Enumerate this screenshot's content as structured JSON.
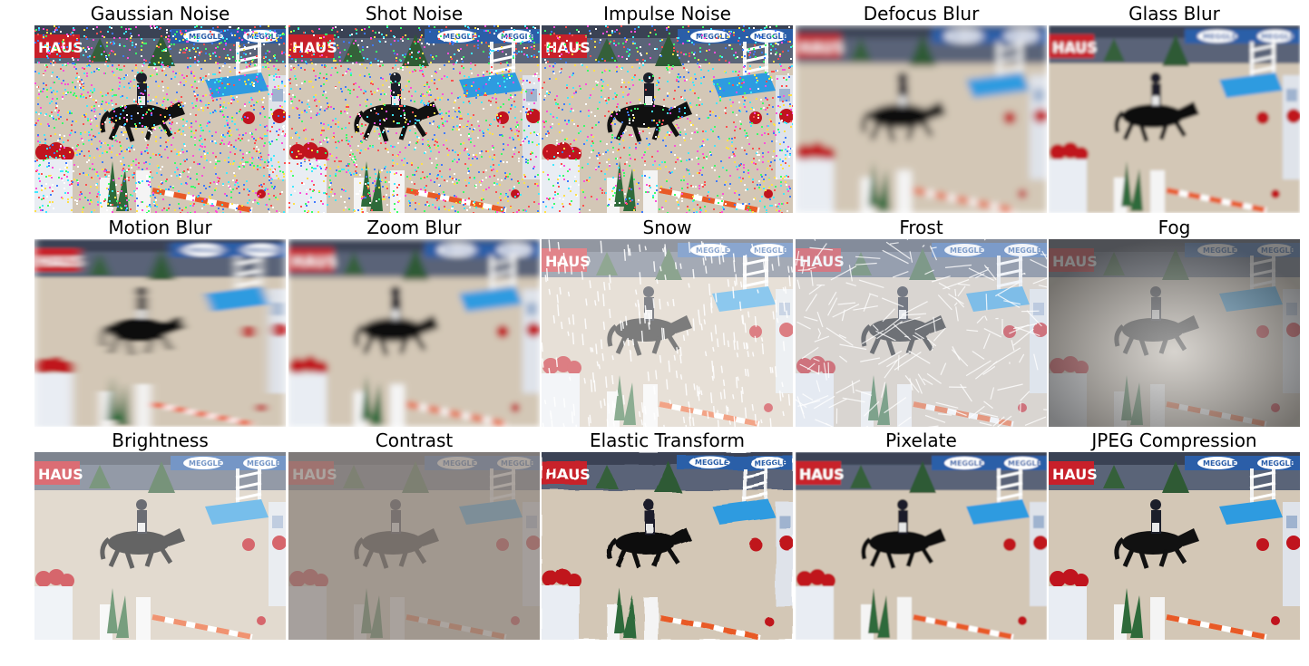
{
  "figure": {
    "panels": [
      {
        "title": "Gaussian Noise",
        "effect": "gaussian_noise"
      },
      {
        "title": "Shot Noise",
        "effect": "shot_noise"
      },
      {
        "title": "Impulse Noise",
        "effect": "impulse_noise"
      },
      {
        "title": "Defocus Blur",
        "effect": "defocus_blur"
      },
      {
        "title": "Glass Blur",
        "effect": "glass_blur"
      },
      {
        "title": "Motion Blur",
        "effect": "motion_blur"
      },
      {
        "title": "Zoom Blur",
        "effect": "zoom_blur"
      },
      {
        "title": "Snow",
        "effect": "snow"
      },
      {
        "title": "Frost",
        "effect": "frost"
      },
      {
        "title": "Fog",
        "effect": "fog"
      },
      {
        "title": "Brightness",
        "effect": "brightness"
      },
      {
        "title": "Contrast",
        "effect": "contrast"
      },
      {
        "title": "Elastic Transform",
        "effect": "elastic_transform"
      },
      {
        "title": "Pixelate",
        "effect": "pixelate"
      },
      {
        "title": "JPEG Compression",
        "effect": "jpeg_compression"
      }
    ]
  },
  "scene": {
    "subject": "horse and rider in a show-jumping arena",
    "banner_left": "HAUS",
    "banner_right": "MEGGLE",
    "colors": {
      "arena": "#d3c7b6",
      "banner_red": "#c8202a",
      "banner_blue": "#2b5ea8",
      "jump_blue": "#2e9be0",
      "flowers": "#c0141e",
      "horse": "#111111"
    }
  }
}
